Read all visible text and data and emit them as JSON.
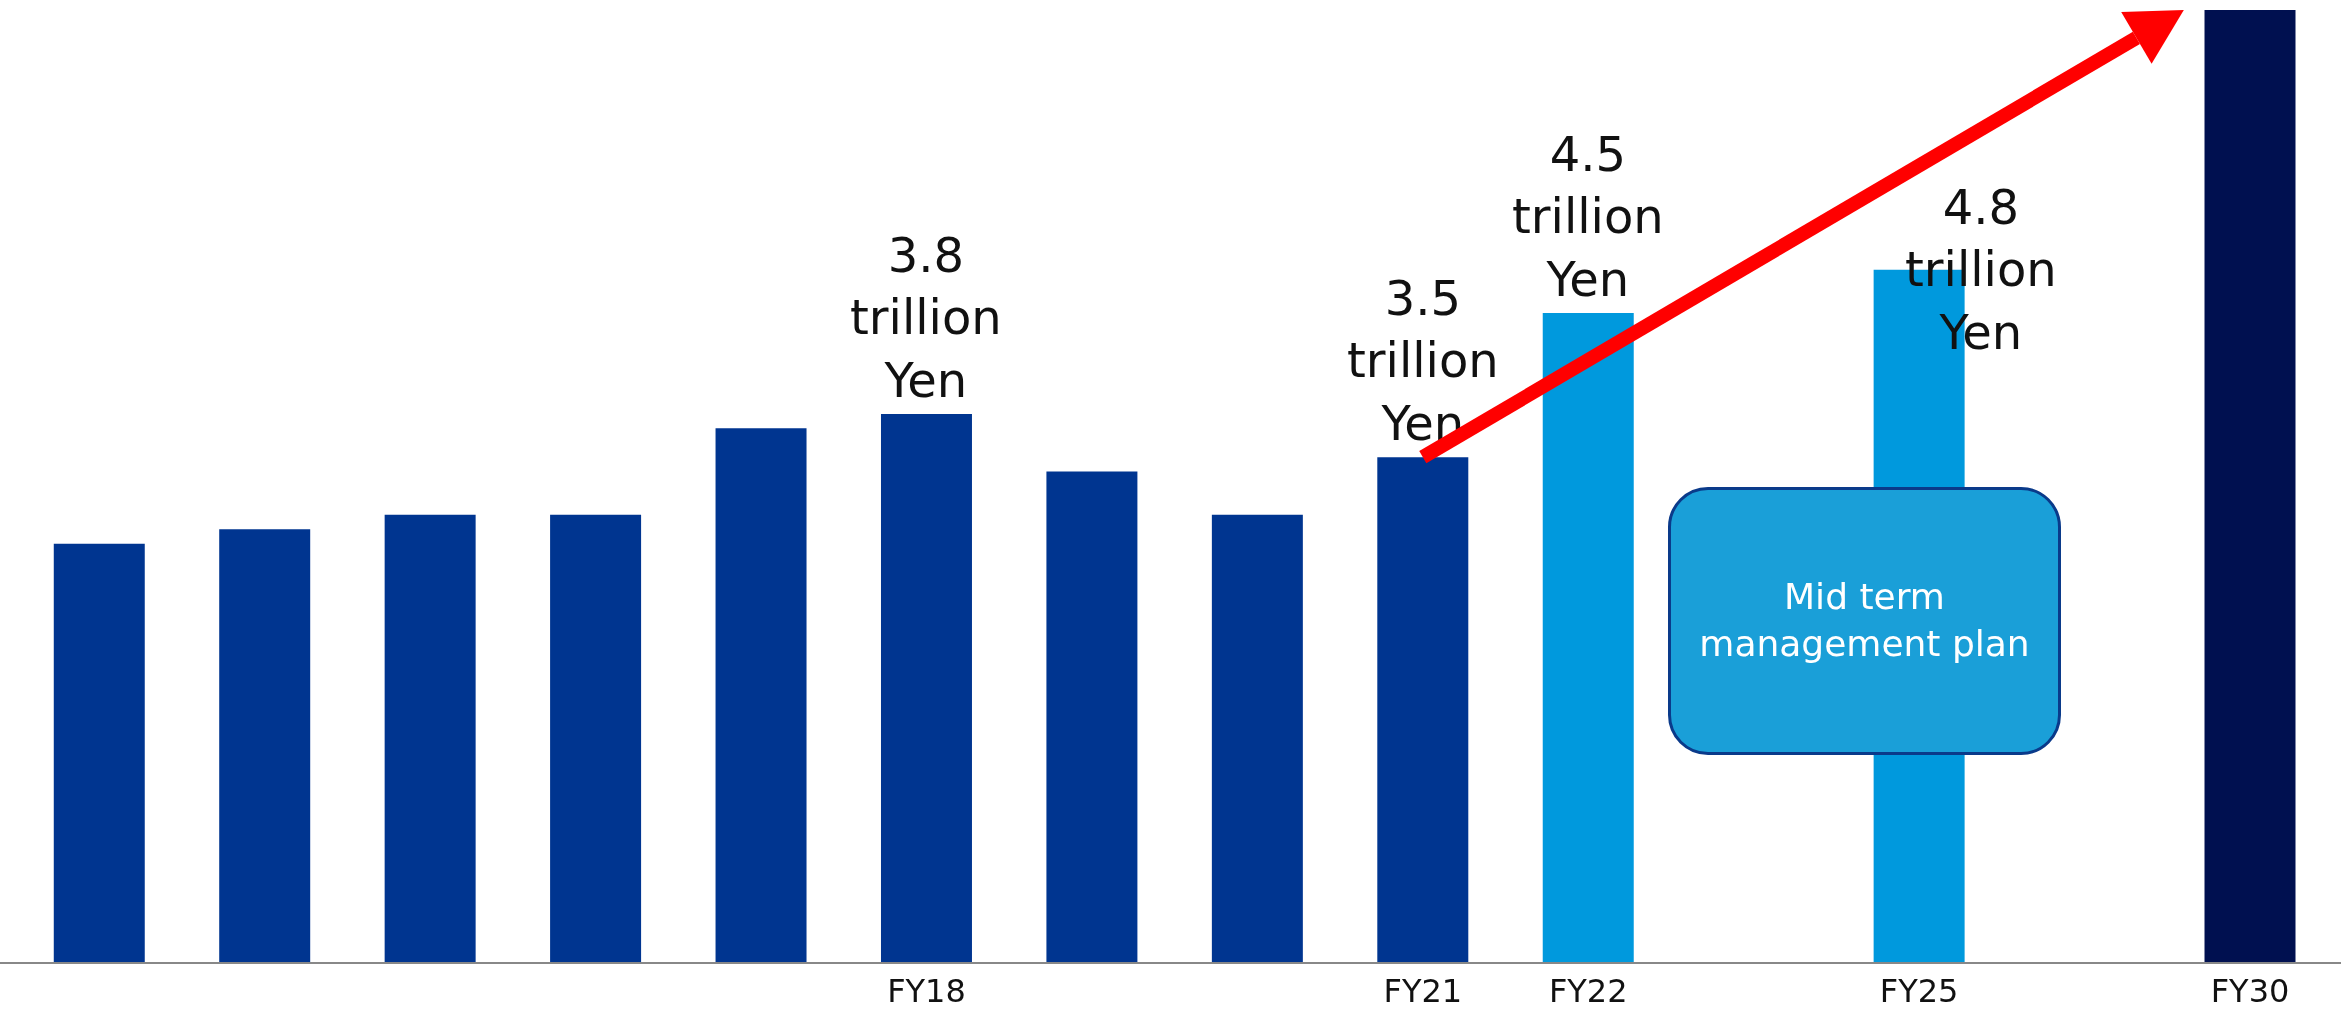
{
  "chart_data": {
    "type": "bar",
    "categories": [
      null,
      null,
      null,
      null,
      null,
      "FY18",
      null,
      null,
      "FY21",
      "FY22",
      null,
      "FY25",
      null,
      "FY30"
    ],
    "values": [
      2.9,
      3.0,
      3.1,
      3.1,
      3.7,
      3.8,
      3.4,
      3.1,
      3.5,
      4.5,
      null,
      4.8,
      null,
      6.6
    ],
    "colors": [
      "#003590",
      "#003590",
      "#003590",
      "#003590",
      "#003590",
      "#003590",
      "#003590",
      "#003590",
      "#003590",
      "#0099dd",
      "#0099dd",
      "#0099dd",
      "#001050",
      "#001050"
    ],
    "value_labels": [
      null,
      null,
      null,
      null,
      null,
      "3.8 trillion Yen",
      null,
      null,
      "3.5 trillion Yen",
      "4.5 trillion Yen",
      null,
      "4.8 trillion Yen",
      null,
      null
    ],
    "annotations": [
      "Mid term management plan"
    ],
    "grid": false
  }
}
